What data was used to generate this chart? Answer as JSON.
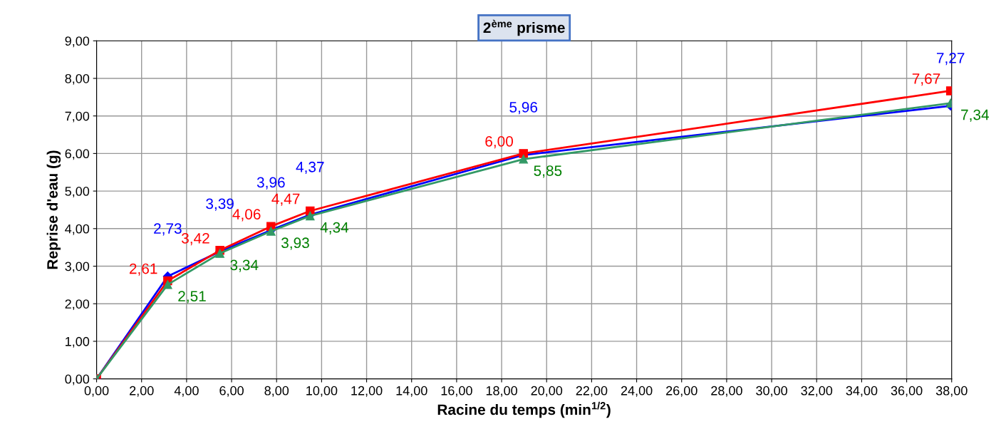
{
  "chart_data": {
    "type": "line",
    "title": "2$^{ème}$ prisme",
    "xlabel": "Racine du temps (min$^{1/2}$)",
    "ylabel": "Reprise d'eau (g)",
    "x": [
      0,
      3.16,
      5.48,
      7.75,
      9.49,
      18.97,
      37.95
    ],
    "series": [
      {
        "color": "#0000ff",
        "marker": "diamond",
        "values": [
          0,
          2.73,
          3.39,
          3.96,
          4.37,
          5.96,
          7.27
        ],
        "value_labels": [
          null,
          "2,73",
          "3,39",
          "3,96",
          "4,37",
          "5,96",
          "7,27"
        ]
      },
      {
        "color": "#ff0000",
        "marker": "square",
        "values": [
          0,
          2.61,
          3.42,
          4.06,
          4.47,
          6.0,
          7.67
        ],
        "value_labels": [
          null,
          "2,61",
          "3,42",
          "4,06",
          "4,47",
          "6,00",
          "7,67"
        ]
      },
      {
        "color": "#339966",
        "marker": "triangle",
        "values": [
          0,
          2.51,
          3.34,
          3.93,
          4.34,
          5.85,
          7.34
        ],
        "value_labels": [
          null,
          "2,51",
          "3,34",
          "3,93",
          "4,34",
          "5,85",
          "7,34"
        ]
      }
    ],
    "xlim": [
      0,
      38
    ],
    "ylim": [
      0,
      9
    ],
    "xticks": [
      {
        "value": 0,
        "label": "0,00"
      },
      {
        "value": 2,
        "label": "2,00"
      },
      {
        "value": 4,
        "label": "4,00"
      },
      {
        "value": 6,
        "label": "6,00"
      },
      {
        "value": 8,
        "label": "8,00"
      },
      {
        "value": 10,
        "label": "10,00"
      },
      {
        "value": 12,
        "label": "12,00"
      },
      {
        "value": 14,
        "label": "14,00"
      },
      {
        "value": 16,
        "label": "16,00"
      },
      {
        "value": 18,
        "label": "18,00"
      },
      {
        "value": 20,
        "label": "20,00"
      },
      {
        "value": 22,
        "label": "22,00"
      },
      {
        "value": 24,
        "label": "24,00"
      },
      {
        "value": 26,
        "label": "26,00"
      },
      {
        "value": 28,
        "label": "28,00"
      },
      {
        "value": 30,
        "label": "30,00"
      },
      {
        "value": 32,
        "label": "32,00"
      },
      {
        "value": 34,
        "label": "34,00"
      },
      {
        "value": 36,
        "label": "36,00"
      },
      {
        "value": 38,
        "label": "38,00"
      }
    ],
    "yticks": [
      {
        "value": 0,
        "label": "0,00"
      },
      {
        "value": 1,
        "label": "1,00"
      },
      {
        "value": 2,
        "label": "2,00"
      },
      {
        "value": 3,
        "label": "3,00"
      },
      {
        "value": 4,
        "label": "4,00"
      },
      {
        "value": 5,
        "label": "5,00"
      },
      {
        "value": 6,
        "label": "6,00"
      },
      {
        "value": 7,
        "label": "7,00"
      },
      {
        "value": 8,
        "label": "8,00"
      },
      {
        "value": 9,
        "label": "9,00"
      }
    ],
    "grid": true,
    "line_style": "solid"
  }
}
